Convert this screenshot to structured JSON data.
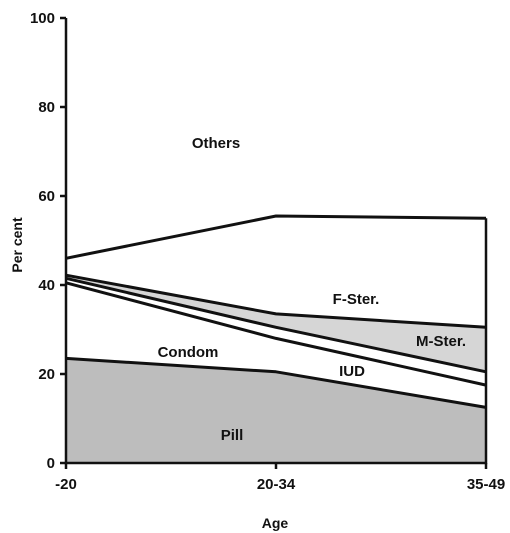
{
  "chart_data": {
    "type": "area",
    "categories": [
      "-20",
      "20-34",
      "35-49"
    ],
    "xlabel": "Age",
    "ylabel": "Per cent",
    "ylim": [
      0,
      100
    ],
    "yticks": [
      0,
      20,
      40,
      60,
      80,
      100
    ],
    "grid": false,
    "series": [
      {
        "name": "Pill",
        "top": [
          23.5,
          20.5,
          12.5
        ],
        "fill": "#bdbdbd"
      },
      {
        "name": "Condom",
        "top": [
          40.5,
          28,
          17.5
        ],
        "fill": "#ffffff"
      },
      {
        "name": "IUD",
        "top": [
          41.5,
          30.5,
          20.5
        ],
        "fill": "#ffffff"
      },
      {
        "name": "M-Ster.",
        "top": [
          42.2,
          33.5,
          30.5
        ],
        "fill": "#d6d6d6"
      },
      {
        "name": "F-Ster.",
        "top": [
          46,
          55.5,
          55
        ],
        "fill": "#ffffff"
      },
      {
        "name": "Others",
        "top": [
          100,
          100,
          100
        ],
        "fill": "#ffffff"
      }
    ]
  }
}
